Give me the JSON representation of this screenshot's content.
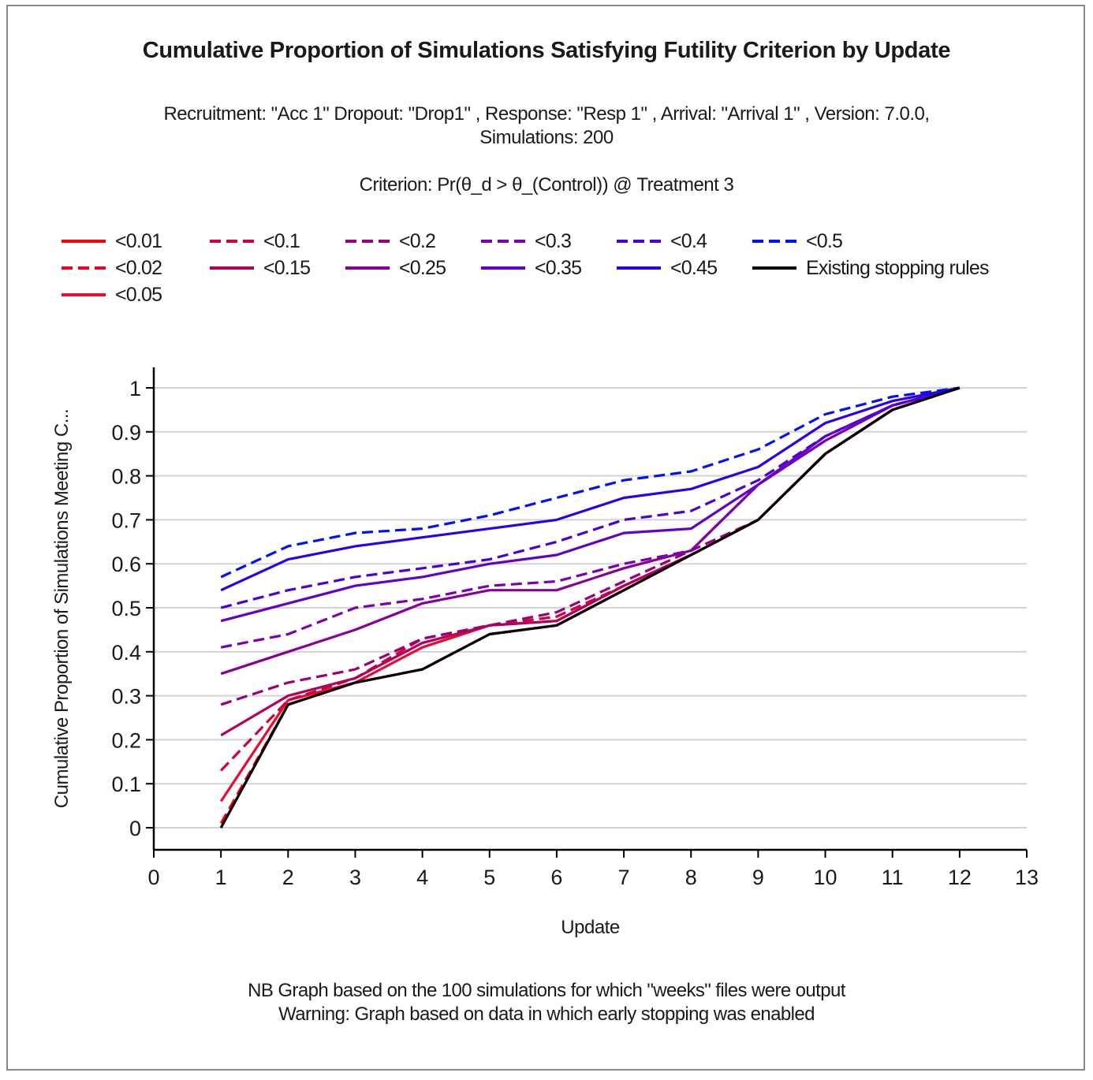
{
  "chart_data": {
    "type": "line",
    "title": "Cumulative Proportion of Simulations Satisfying Futility Criterion by Update",
    "subtitle_lines": [
      "Recruitment: \"Acc 1\" Dropout: \"Drop1\" , Response: \"Resp 1\" , Arrival: \"Arrival 1\" , Version: 7.0.0,",
      "Simulations: 200"
    ],
    "criterion": "Criterion: Pr(θ_d > θ_(Control)) @ Treatment 3",
    "xlabel": "Update",
    "ylabel": "Cumulative Proportion of Simulations Meeting C...",
    "xlim": [
      0,
      13
    ],
    "ylim": [
      0,
      1
    ],
    "x_ticks": [
      "0",
      "1",
      "2",
      "3",
      "4",
      "5",
      "6",
      "7",
      "8",
      "9",
      "10",
      "11",
      "12",
      "13"
    ],
    "y_ticks": [
      "0",
      "0.1",
      "0.2",
      "0.3",
      "0.4",
      "0.5",
      "0.6",
      "0.7",
      "0.8",
      "0.9",
      "1"
    ],
    "grid": "horizontal",
    "legend_position": "top",
    "x": [
      1,
      2,
      3,
      4,
      5,
      6,
      7,
      8,
      9,
      10,
      11,
      12
    ],
    "series": [
      {
        "name": "<0.01",
        "color": "#ff0000",
        "dash": "solid",
        "values": [
          0.0,
          0.28,
          0.33,
          0.36,
          0.44,
          0.46,
          0.54,
          0.62,
          0.7,
          0.85,
          0.95,
          1.0
        ]
      },
      {
        "name": "<0.02",
        "color": "#f5001a",
        "dash": "dashed",
        "values": [
          0.01,
          0.28,
          0.33,
          0.36,
          0.44,
          0.46,
          0.54,
          0.62,
          0.7,
          0.85,
          0.95,
          1.0
        ]
      },
      {
        "name": "<0.05",
        "color": "#eb0a30",
        "dash": "solid",
        "values": [
          0.06,
          0.29,
          0.33,
          0.41,
          0.46,
          0.47,
          0.55,
          0.62,
          0.7,
          0.85,
          0.95,
          1.0
        ]
      },
      {
        "name": "<0.1",
        "color": "#d1003c",
        "dash": "dashed",
        "values": [
          0.13,
          0.29,
          0.34,
          0.43,
          0.46,
          0.48,
          0.55,
          0.62,
          0.7,
          0.85,
          0.95,
          1.0
        ]
      },
      {
        "name": "<0.15",
        "color": "#b4005a",
        "dash": "solid",
        "values": [
          0.21,
          0.3,
          0.34,
          0.42,
          0.46,
          0.47,
          0.55,
          0.62,
          0.7,
          0.85,
          0.95,
          1.0
        ]
      },
      {
        "name": "<0.2",
        "color": "#9a0078",
        "dash": "dashed",
        "values": [
          0.28,
          0.33,
          0.36,
          0.43,
          0.46,
          0.49,
          0.56,
          0.63,
          0.7,
          0.85,
          0.95,
          1.0
        ]
      },
      {
        "name": "<0.25",
        "color": "#880099",
        "dash": "solid",
        "values": [
          0.35,
          0.4,
          0.45,
          0.51,
          0.54,
          0.54,
          0.59,
          0.63,
          0.78,
          0.88,
          0.96,
          1.0
        ]
      },
      {
        "name": "<0.3",
        "color": "#7a00b4",
        "dash": "dashed",
        "values": [
          0.41,
          0.44,
          0.5,
          0.52,
          0.55,
          0.56,
          0.6,
          0.63,
          0.78,
          0.88,
          0.96,
          1.0
        ]
      },
      {
        "name": "<0.35",
        "color": "#6400cc",
        "dash": "solid",
        "values": [
          0.47,
          0.51,
          0.55,
          0.57,
          0.6,
          0.62,
          0.67,
          0.68,
          0.78,
          0.89,
          0.96,
          1.0
        ]
      },
      {
        "name": "<0.4",
        "color": "#4a00dc",
        "dash": "dashed",
        "values": [
          0.5,
          0.54,
          0.57,
          0.59,
          0.61,
          0.65,
          0.7,
          0.72,
          0.79,
          0.89,
          0.96,
          1.0
        ]
      },
      {
        "name": "<0.45",
        "color": "#2a00f0",
        "dash": "solid",
        "values": [
          0.54,
          0.61,
          0.64,
          0.66,
          0.68,
          0.7,
          0.75,
          0.77,
          0.82,
          0.92,
          0.97,
          1.0
        ]
      },
      {
        "name": "<0.5",
        "color": "#0010ff",
        "dash": "dashed",
        "values": [
          0.57,
          0.64,
          0.67,
          0.68,
          0.71,
          0.75,
          0.79,
          0.81,
          0.86,
          0.94,
          0.98,
          1.0
        ]
      },
      {
        "name": "Existing stopping rules",
        "color": "#000000",
        "dash": "solid",
        "values": [
          0.0,
          0.28,
          0.33,
          0.36,
          0.44,
          0.46,
          0.54,
          0.62,
          0.7,
          0.85,
          0.95,
          1.0
        ]
      }
    ],
    "footnotes": [
      "NB Graph based on the 100 simulations for which \"weeks\" files were output",
      "Warning: Graph based on data in which early stopping was enabled"
    ]
  }
}
